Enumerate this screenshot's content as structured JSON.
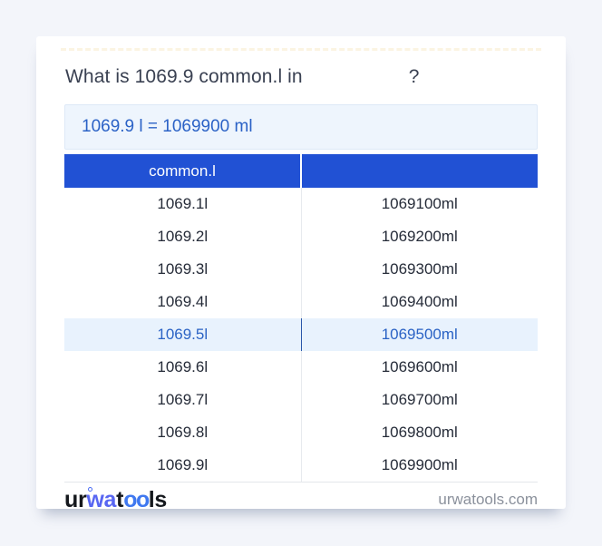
{
  "title": {
    "prefix": "What is 1069.9 common.l in",
    "suffix": "?"
  },
  "answer": "1069.9 l = 1069900 ml",
  "table": {
    "header": {
      "col1": "common.l",
      "col2": ""
    },
    "highlight_index": 4,
    "rows": [
      {
        "l": "1069.1l",
        "ml": "1069100ml"
      },
      {
        "l": "1069.2l",
        "ml": "1069200ml"
      },
      {
        "l": "1069.3l",
        "ml": "1069300ml"
      },
      {
        "l": "1069.4l",
        "ml": "1069400ml"
      },
      {
        "l": "1069.5l",
        "ml": "1069500ml"
      },
      {
        "l": "1069.6l",
        "ml": "1069600ml"
      },
      {
        "l": "1069.7l",
        "ml": "1069700ml"
      },
      {
        "l": "1069.8l",
        "ml": "1069800ml"
      },
      {
        "l": "1069.9l",
        "ml": "1069900ml"
      }
    ]
  },
  "footer": {
    "logo": {
      "part1": "ur",
      "part2": "wa",
      "part3": "t",
      "part4": "oo",
      "part5": "ls"
    },
    "site": "urwatools.com"
  },
  "colors": {
    "header_bg": "#2151d4",
    "accent_blue": "#2b62c6",
    "highlight_bg": "#e8f2fd",
    "page_bg": "#f3f5fa"
  }
}
